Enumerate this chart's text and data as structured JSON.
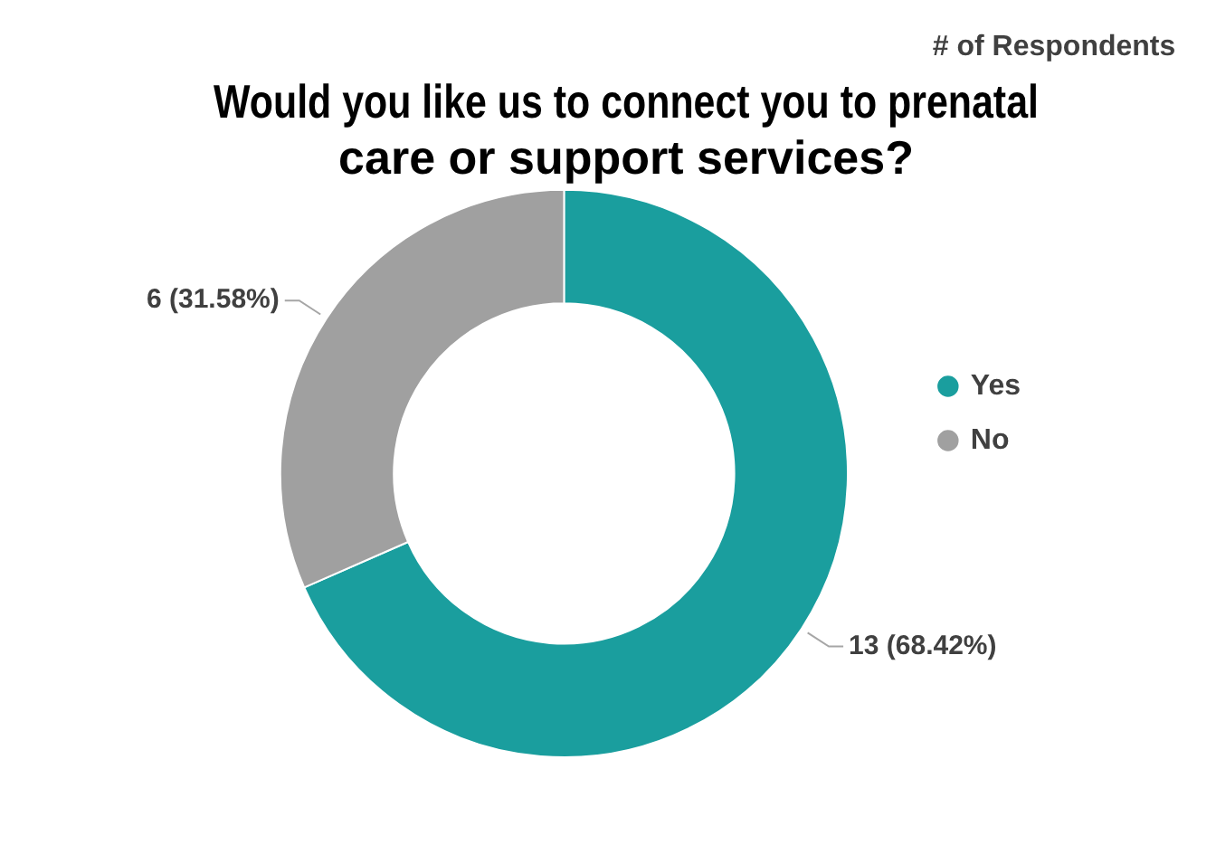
{
  "chart_data": {
    "type": "donut",
    "title": "Would you like us to connect you to prenatal care or support services?",
    "legend_title": "# of Respondents",
    "legend": "right",
    "categories": [
      "Yes",
      "No"
    ],
    "values": [
      13,
      6
    ],
    "colors": [
      "#1a9e9e",
      "#a0a0a0"
    ],
    "value_labels": [
      "13 (68.42%)",
      "6 (31.58%)"
    ]
  }
}
